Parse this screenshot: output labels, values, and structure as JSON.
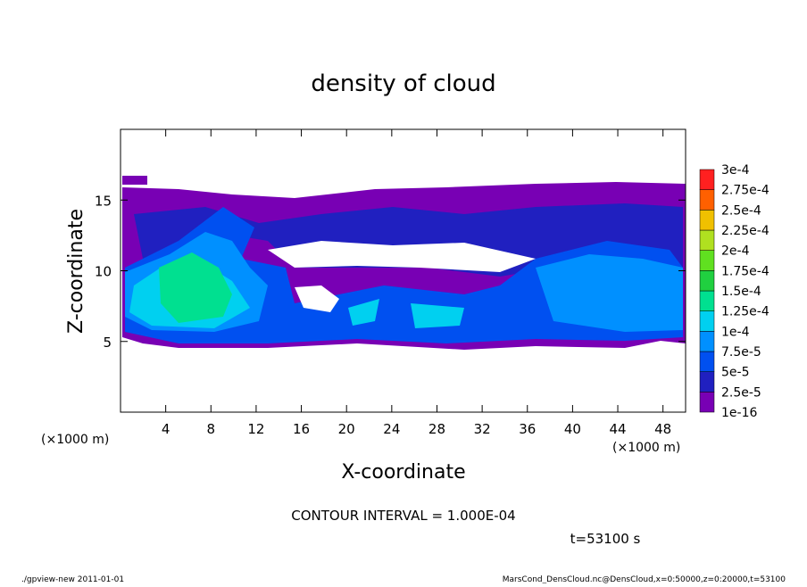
{
  "chart_data": {
    "type": "contour",
    "title": "density of cloud",
    "xlabel": "X-coordinate",
    "ylabel": "Z-coordinate",
    "xunit": "(×1000 m)",
    "yunit": "(×1000 m)",
    "xlim": [
      0,
      50
    ],
    "ylim": [
      0,
      20
    ],
    "xticks": [
      4,
      8,
      12,
      16,
      20,
      24,
      28,
      32,
      36,
      40,
      44,
      48
    ],
    "yticks": [
      5,
      10,
      15
    ],
    "levels": [
      {
        "value": 1e-16,
        "label": "1e-16"
      },
      {
        "value": 2.5e-05,
        "label": "2.5e-5"
      },
      {
        "value": 5e-05,
        "label": "5e-5"
      },
      {
        "value": 7.5e-05,
        "label": "7.5e-5"
      },
      {
        "value": 0.0001,
        "label": "1e-4"
      },
      {
        "value": 0.000125,
        "label": "1.25e-4"
      },
      {
        "value": 0.00015,
        "label": "1.5e-4"
      },
      {
        "value": 0.000175,
        "label": "1.75e-4"
      },
      {
        "value": 0.0002,
        "label": "2e-4"
      },
      {
        "value": 0.000225,
        "label": "2.25e-4"
      },
      {
        "value": 0.00025,
        "label": "2.5e-4"
      },
      {
        "value": 0.000275,
        "label": "2.75e-4"
      },
      {
        "value": 0.0003,
        "label": "3e-4"
      }
    ],
    "colors": [
      "#7800b4",
      "#2020c0",
      "#0050f0",
      "#0090ff",
      "#00d0f0",
      "#00e090",
      "#20d040",
      "#60e020",
      "#b0e020",
      "#f0c000",
      "#ff6000",
      "#ff2020",
      "#ff9090"
    ],
    "contour_interval": "CONTOUR INTERVAL = 1.000E-04",
    "time": "t=53100 s",
    "footer_left": "./gpview-new  2011-01-01",
    "footer_right": "MarsCond_DensCloud.nc@DensCloud,x=0:50000,z=0:20000,t=53100"
  }
}
